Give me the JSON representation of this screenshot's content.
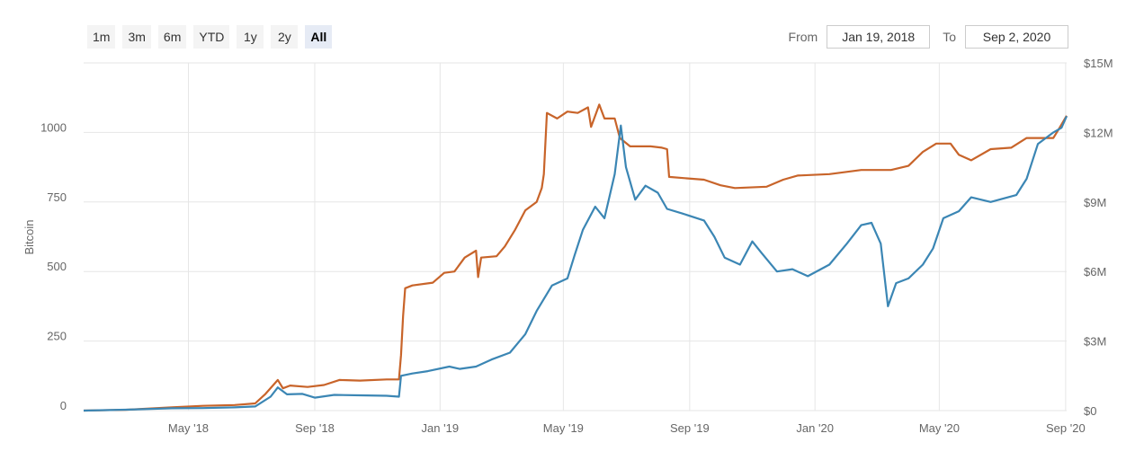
{
  "range_selector": {
    "buttons": [
      {
        "label": "1m",
        "active": false
      },
      {
        "label": "3m",
        "active": false
      },
      {
        "label": "6m",
        "active": false
      },
      {
        "label": "YTD",
        "active": false
      },
      {
        "label": "1y",
        "active": false
      },
      {
        "label": "2y",
        "active": false
      },
      {
        "label": "All",
        "active": true
      }
    ]
  },
  "date_range": {
    "from_label": "From",
    "from_value": "Jan 19, 2018",
    "to_label": "To",
    "to_value": "Sep 2, 2020"
  },
  "chart_data": {
    "type": "line",
    "ylabel": "Bitcoin",
    "x_range": [
      "2018-01-19",
      "2020-09-02"
    ],
    "x_ticks": [
      "May '18",
      "Sep '18",
      "Jan '19",
      "May '19",
      "Sep '19",
      "Jan '20",
      "May '20",
      "Sep '20"
    ],
    "x_tick_dates": [
      "2018-05-01",
      "2018-09-01",
      "2019-01-01",
      "2019-05-01",
      "2019-09-01",
      "2020-01-01",
      "2020-05-01",
      "2020-09-01"
    ],
    "y_left": {
      "min": 0,
      "max": 1250,
      "ticks": [
        0,
        250,
        500,
        750,
        1000
      ],
      "tick_labels": [
        "0",
        "250",
        "500",
        "750",
        "1000"
      ]
    },
    "y_right": {
      "min": 0,
      "max": 15000000,
      "ticks": [
        0,
        3000000,
        6000000,
        9000000,
        12000000,
        15000000
      ],
      "tick_labels": [
        "$0",
        "$3M",
        "$6M",
        "$9M",
        "$12M",
        "$15M"
      ]
    },
    "grid": true,
    "colors": {
      "bitcoin": "#c8642a",
      "usd": "#3b86b4"
    },
    "series": [
      {
        "axis": "left",
        "color": "#c8642a",
        "points": [
          [
            "2018-01-19",
            0
          ],
          [
            "2018-03-01",
            3
          ],
          [
            "2018-04-15",
            12
          ],
          [
            "2018-05-15",
            17
          ],
          [
            "2018-06-15",
            20
          ],
          [
            "2018-07-05",
            26
          ],
          [
            "2018-07-15",
            60
          ],
          [
            "2018-07-27",
            110
          ],
          [
            "2018-08-01",
            80
          ],
          [
            "2018-08-08",
            90
          ],
          [
            "2018-08-25",
            85
          ],
          [
            "2018-09-10",
            92
          ],
          [
            "2018-09-25",
            110
          ],
          [
            "2018-10-15",
            108
          ],
          [
            "2018-11-10",
            112
          ],
          [
            "2018-11-22",
            112
          ],
          [
            "2018-11-24",
            200
          ],
          [
            "2018-11-26",
            340
          ],
          [
            "2018-11-28",
            440
          ],
          [
            "2018-12-05",
            450
          ],
          [
            "2018-12-25",
            460
          ],
          [
            "2019-01-05",
            495
          ],
          [
            "2019-01-15",
            500
          ],
          [
            "2019-01-25",
            550
          ],
          [
            "2019-02-05",
            575
          ],
          [
            "2019-02-07",
            480
          ],
          [
            "2019-02-10",
            550
          ],
          [
            "2019-02-25",
            555
          ],
          [
            "2019-03-05",
            590
          ],
          [
            "2019-03-15",
            650
          ],
          [
            "2019-03-25",
            720
          ],
          [
            "2019-04-05",
            750
          ],
          [
            "2019-04-10",
            800
          ],
          [
            "2019-04-12",
            850
          ],
          [
            "2019-04-15",
            1070
          ],
          [
            "2019-04-25",
            1050
          ],
          [
            "2019-05-05",
            1075
          ],
          [
            "2019-05-15",
            1070
          ],
          [
            "2019-05-25",
            1090
          ],
          [
            "2019-05-28",
            1020
          ],
          [
            "2019-06-01",
            1060
          ],
          [
            "2019-06-05",
            1100
          ],
          [
            "2019-06-10",
            1050
          ],
          [
            "2019-06-20",
            1050
          ],
          [
            "2019-06-25",
            980
          ],
          [
            "2019-07-05",
            950
          ],
          [
            "2019-07-25",
            950
          ],
          [
            "2019-08-05",
            945
          ],
          [
            "2019-08-10",
            940
          ],
          [
            "2019-08-12",
            840
          ],
          [
            "2019-09-15",
            830
          ],
          [
            "2019-10-01",
            810
          ],
          [
            "2019-10-15",
            800
          ],
          [
            "2019-11-15",
            805
          ],
          [
            "2019-12-01",
            830
          ],
          [
            "2019-12-15",
            845
          ],
          [
            "2020-01-15",
            850
          ],
          [
            "2020-02-15",
            865
          ],
          [
            "2020-03-15",
            865
          ],
          [
            "2020-04-01",
            880
          ],
          [
            "2020-04-15",
            930
          ],
          [
            "2020-04-28",
            960
          ],
          [
            "2020-05-12",
            960
          ],
          [
            "2020-05-20",
            920
          ],
          [
            "2020-06-01",
            900
          ],
          [
            "2020-06-20",
            940
          ],
          [
            "2020-07-10",
            945
          ],
          [
            "2020-07-25",
            980
          ],
          [
            "2020-08-20",
            980
          ],
          [
            "2020-08-25",
            1010
          ],
          [
            "2020-09-02",
            1060
          ]
        ]
      },
      {
        "axis": "right",
        "color": "#3b86b4",
        "points": [
          [
            "2018-01-19",
            0
          ],
          [
            "2018-03-01",
            40000
          ],
          [
            "2018-04-15",
            100000
          ],
          [
            "2018-05-15",
            110000
          ],
          [
            "2018-06-15",
            140000
          ],
          [
            "2018-07-05",
            180000
          ],
          [
            "2018-07-20",
            600000
          ],
          [
            "2018-07-27",
            1000000
          ],
          [
            "2018-08-05",
            700000
          ],
          [
            "2018-08-20",
            720000
          ],
          [
            "2018-09-01",
            560000
          ],
          [
            "2018-09-20",
            680000
          ],
          [
            "2018-10-15",
            660000
          ],
          [
            "2018-11-10",
            640000
          ],
          [
            "2018-11-22",
            600000
          ],
          [
            "2018-11-24",
            1500000
          ],
          [
            "2018-12-05",
            1600000
          ],
          [
            "2018-12-20",
            1700000
          ],
          [
            "2019-01-10",
            1900000
          ],
          [
            "2019-01-20",
            1800000
          ],
          [
            "2019-02-05",
            1900000
          ],
          [
            "2019-02-20",
            2200000
          ],
          [
            "2019-03-10",
            2500000
          ],
          [
            "2019-03-25",
            3300000
          ],
          [
            "2019-04-05",
            4300000
          ],
          [
            "2019-04-20",
            5400000
          ],
          [
            "2019-05-05",
            5700000
          ],
          [
            "2019-05-12",
            6700000
          ],
          [
            "2019-05-20",
            7800000
          ],
          [
            "2019-06-01",
            8800000
          ],
          [
            "2019-06-10",
            8300000
          ],
          [
            "2019-06-20",
            10200000
          ],
          [
            "2019-06-26",
            12300000
          ],
          [
            "2019-07-01",
            10500000
          ],
          [
            "2019-07-10",
            9100000
          ],
          [
            "2019-07-20",
            9700000
          ],
          [
            "2019-08-01",
            9400000
          ],
          [
            "2019-08-10",
            8700000
          ],
          [
            "2019-08-25",
            8500000
          ],
          [
            "2019-09-15",
            8200000
          ],
          [
            "2019-09-25",
            7500000
          ],
          [
            "2019-10-05",
            6600000
          ],
          [
            "2019-10-20",
            6300000
          ],
          [
            "2019-11-01",
            7300000
          ],
          [
            "2019-11-10",
            6800000
          ],
          [
            "2019-11-25",
            6000000
          ],
          [
            "2019-12-10",
            6100000
          ],
          [
            "2019-12-25",
            5800000
          ],
          [
            "2020-01-15",
            6300000
          ],
          [
            "2020-02-01",
            7200000
          ],
          [
            "2020-02-15",
            8000000
          ],
          [
            "2020-02-25",
            8100000
          ],
          [
            "2020-03-05",
            7200000
          ],
          [
            "2020-03-12",
            4500000
          ],
          [
            "2020-03-20",
            5500000
          ],
          [
            "2020-04-01",
            5700000
          ],
          [
            "2020-04-15",
            6300000
          ],
          [
            "2020-04-25",
            7000000
          ],
          [
            "2020-05-05",
            8300000
          ],
          [
            "2020-05-20",
            8600000
          ],
          [
            "2020-06-01",
            9200000
          ],
          [
            "2020-06-20",
            9000000
          ],
          [
            "2020-07-15",
            9300000
          ],
          [
            "2020-07-25",
            10000000
          ],
          [
            "2020-08-05",
            11500000
          ],
          [
            "2020-08-20",
            12000000
          ],
          [
            "2020-08-28",
            12200000
          ],
          [
            "2020-09-02",
            12700000
          ]
        ]
      }
    ]
  }
}
